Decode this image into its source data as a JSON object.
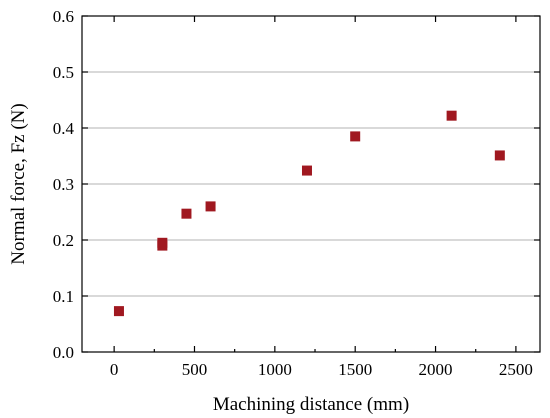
{
  "chart_data": {
    "type": "scatter",
    "title": "",
    "xlabel": "Machining distance (mm)",
    "ylabel": "Normal force, Fz (N)",
    "xlim": [
      -200,
      2650
    ],
    "ylim": [
      0,
      0.6
    ],
    "xticks": [
      0,
      500,
      1000,
      1500,
      2000,
      2500
    ],
    "yticks": [
      0.0,
      0.1,
      0.2,
      0.3,
      0.4,
      0.5,
      0.6
    ],
    "ytick_labels": [
      "0.0",
      "0.1",
      "0.2",
      "0.3",
      "0.4",
      "0.5",
      "0.6"
    ],
    "grid": "horizontal",
    "marker": "square",
    "marker_color": "#a01820",
    "series": [
      {
        "points": [
          {
            "x": 30,
            "y": 0.073
          },
          {
            "x": 300,
            "y": 0.19
          },
          {
            "x": 300,
            "y": 0.195
          },
          {
            "x": 450,
            "y": 0.247
          },
          {
            "x": 600,
            "y": 0.26
          },
          {
            "x": 1200,
            "y": 0.324
          },
          {
            "x": 1500,
            "y": 0.385
          },
          {
            "x": 2100,
            "y": 0.422
          },
          {
            "x": 2400,
            "y": 0.351
          }
        ]
      }
    ]
  }
}
